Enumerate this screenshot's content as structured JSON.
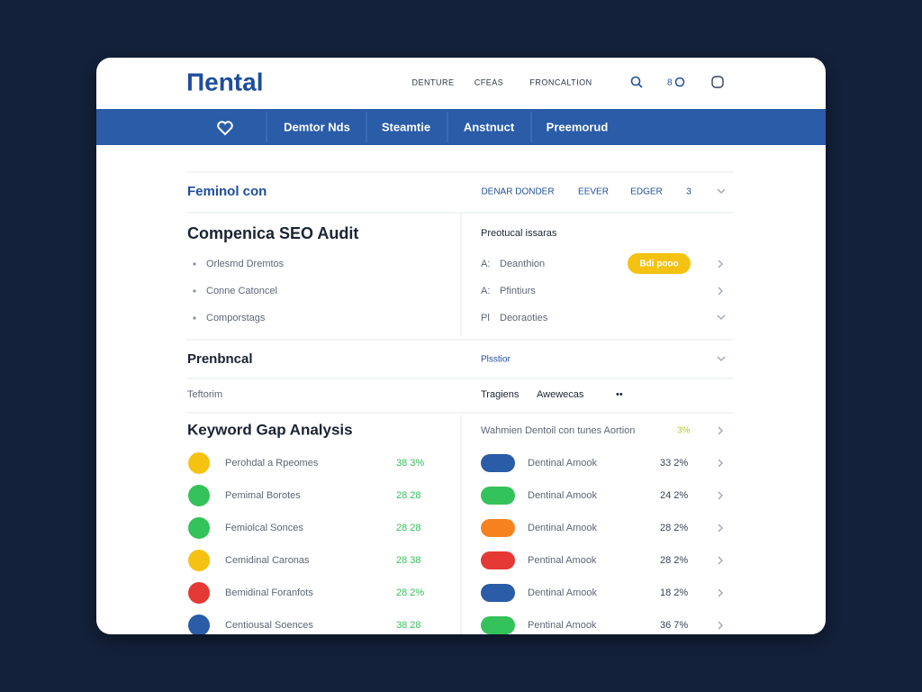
{
  "header": {
    "logo": "Пental",
    "nav": [
      "DENTURE",
      "CFEAS",
      "FRONCALTION"
    ],
    "counter": "8"
  },
  "tabs": [
    "Demtor Nds",
    "Steamtie",
    "Anstnuct",
    "Preemorud"
  ],
  "filter": {
    "title": "Feminol con",
    "options": [
      "DENAR DONDER",
      "EEVER",
      "EDGER",
      "3"
    ]
  },
  "audit": {
    "title": "Compenica SEO Audit",
    "items": [
      "Orlesmd Dremtos",
      "Conne Catoncel",
      "Comporstags"
    ],
    "side_title": "Preotucal issaras",
    "side_items": [
      {
        "prefix": "A:",
        "label": "Deanthion",
        "badge": "Bdi pooo"
      },
      {
        "prefix": "A:",
        "label": "Pfintiurs"
      },
      {
        "prefix": "Pl",
        "label": "Deoraoties"
      }
    ]
  },
  "section2": {
    "title": "Prenbncal",
    "side": "Plsstior",
    "sub": "Teftorim",
    "cols": [
      "Tragiens",
      "Awewecas",
      "••"
    ]
  },
  "keywords": {
    "title": "Keyword Gap Analysis",
    "side_title": "Wahmien Dentoil con tunes Aortion",
    "side_value": "3%",
    "left": [
      {
        "label": "Perohdal a Rpeomes",
        "value": "38 3%",
        "color": "#f5c211"
      },
      {
        "label": "Pemimal Borotes",
        "value": "28 28",
        "color": "#34c25a"
      },
      {
        "label": "Femiolcal Sonces",
        "value": "28 28",
        "color": "#34c25a"
      },
      {
        "label": "Cemidinal Caronas",
        "value": "28 38",
        "color": "#f5c211"
      },
      {
        "label": "Bemidinal Foranfots",
        "value": "28 2%",
        "color": "#e53935"
      },
      {
        "label": "Centiousal Soences",
        "value": "38 28",
        "color": "#2a5ca8"
      }
    ],
    "right": [
      {
        "label": "Dentinal Amook",
        "value": "33 2%",
        "color": "#2a5ca8"
      },
      {
        "label": "Dentinal Amook",
        "value": "24 2%",
        "color": "#34c25a"
      },
      {
        "label": "Dentinal Amook",
        "value": "28 2%",
        "color": "#f5821f"
      },
      {
        "label": "Pentinal Amook",
        "value": "28 2%",
        "color": "#e53935"
      },
      {
        "label": "Dentinal Amook",
        "value": "18 2%",
        "color": "#2a5ca8"
      },
      {
        "label": "Pentinal Amook",
        "value": "36 7%",
        "color": "#34c25a"
      }
    ]
  }
}
